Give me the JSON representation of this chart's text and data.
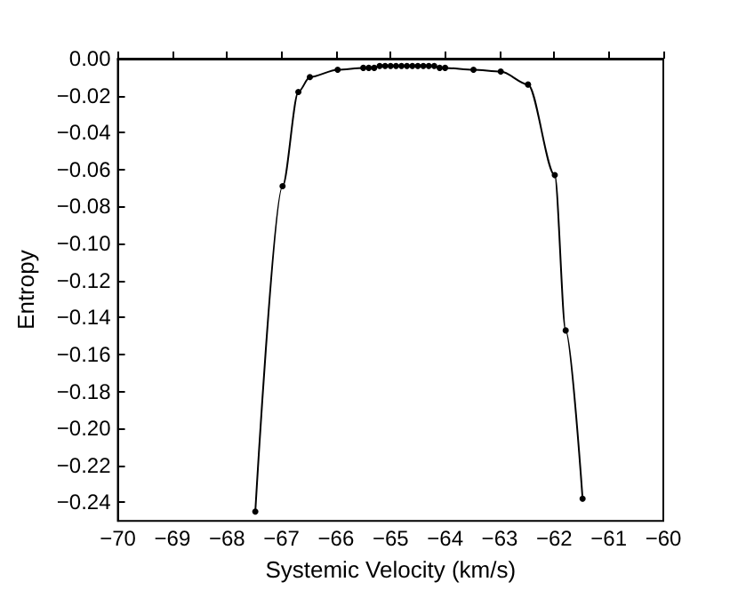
{
  "chart_data": {
    "type": "line",
    "xlabel": "Systemic Velocity (km/s)",
    "ylabel": "Entropy",
    "x": [
      -67.48,
      -66.98,
      -66.69,
      -66.48,
      -65.97,
      -65.5,
      -65.4,
      -65.3,
      -65.2,
      -65.1,
      -65.0,
      -64.9,
      -64.8,
      -64.7,
      -64.6,
      -64.5,
      -64.4,
      -64.3,
      -64.2,
      -64.1,
      -64.0,
      -63.48,
      -62.98,
      -62.48,
      -61.99,
      -61.79,
      -61.48
    ],
    "series": [
      {
        "color": "#000000",
        "values": [
          -0.245,
          -0.069,
          -0.018,
          -0.01,
          -0.006,
          -0.005,
          -0.005,
          -0.005,
          -0.004,
          -0.004,
          -0.004,
          -0.004,
          -0.004,
          -0.004,
          -0.004,
          -0.004,
          -0.004,
          -0.004,
          -0.004,
          -0.005,
          -0.005,
          -0.006,
          -0.007,
          -0.014,
          -0.063,
          -0.147,
          -0.238
        ]
      }
    ],
    "xlim": [
      -70,
      -60
    ],
    "ylim": [
      -0.25,
      0
    ],
    "xticks": [
      {
        "value": -70,
        "label": "−70"
      },
      {
        "value": -69,
        "label": "−69"
      },
      {
        "value": -68,
        "label": "−68"
      },
      {
        "value": -67,
        "label": "−67"
      },
      {
        "value": -66,
        "label": "−66"
      },
      {
        "value": -65,
        "label": "−65"
      },
      {
        "value": -64,
        "label": "−64"
      },
      {
        "value": -63,
        "label": "−63"
      },
      {
        "value": -62,
        "label": "−62"
      },
      {
        "value": -61,
        "label": "−61"
      },
      {
        "value": -60,
        "label": "−60"
      }
    ],
    "yticks": [
      {
        "value": 0,
        "label": "0.00"
      },
      {
        "value": -0.02,
        "label": "−0.02"
      },
      {
        "value": -0.04,
        "label": "−0.04"
      },
      {
        "value": -0.06,
        "label": "−0.06"
      },
      {
        "value": -0.08,
        "label": "−0.08"
      },
      {
        "value": -0.1,
        "label": "−0.10"
      },
      {
        "value": -0.12,
        "label": "−0.12"
      },
      {
        "value": -0.14,
        "label": "−0.14"
      },
      {
        "value": -0.16,
        "label": "−0.16"
      },
      {
        "value": -0.18,
        "label": "−0.18"
      },
      {
        "value": -0.2,
        "label": "−0.20"
      },
      {
        "value": -0.22,
        "label": "−0.22"
      },
      {
        "value": -0.24,
        "label": "−0.24"
      }
    ],
    "grid": false,
    "marker": "circle",
    "line_style": "solid"
  }
}
